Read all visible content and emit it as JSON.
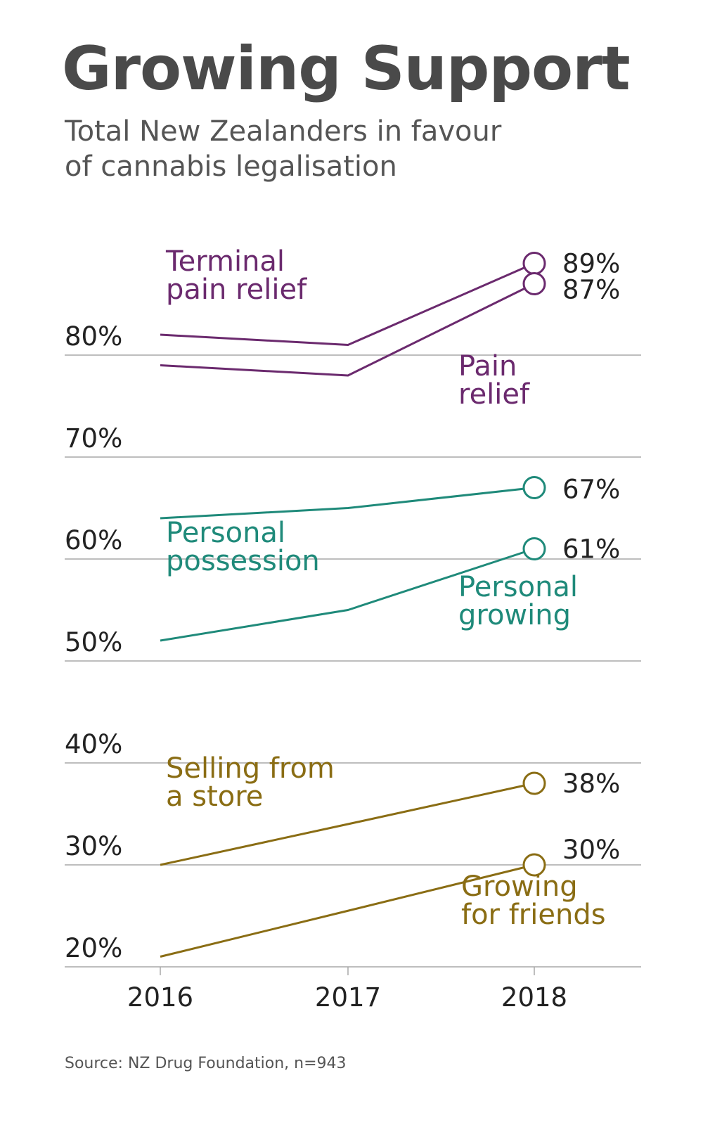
{
  "header": {
    "title": "Growing Support",
    "subtitle_line1": "Total New Zealanders in favour",
    "subtitle_line2": "of cannabis legalisation"
  },
  "footer": {
    "source": "Source: NZ Drug Foundation, n=943"
  },
  "chart_data": {
    "type": "line",
    "title": "Growing Support",
    "subtitle": "Total New Zealanders in favour of cannabis legalisation",
    "x": [
      "2016",
      "2017",
      "2018"
    ],
    "yticks": [
      "20%",
      "30%",
      "40%",
      "50%",
      "60%",
      "70%",
      "80%"
    ],
    "ytick_values": [
      20,
      30,
      40,
      50,
      60,
      70,
      80
    ],
    "ylim": [
      20,
      90
    ],
    "grid": true,
    "series": [
      {
        "name_line1": "Terminal",
        "name_line2": "pain relief",
        "values": [
          82,
          81,
          89
        ],
        "end_label": "89%",
        "color": "#6b2a6e"
      },
      {
        "name_line1": "Pain",
        "name_line2": "relief",
        "values": [
          79,
          78,
          87
        ],
        "end_label": "87%",
        "color": "#6b2a6e"
      },
      {
        "name_line1": "Personal",
        "name_line2": "possession",
        "values": [
          64,
          65,
          67
        ],
        "end_label": "67%",
        "color": "#1f8a7a"
      },
      {
        "name_line1": "Personal",
        "name_line2": "growing",
        "values": [
          52,
          55,
          61
        ],
        "end_label": "61%",
        "color": "#1f8a7a"
      },
      {
        "name_line1": "Selling from",
        "name_line2": "a store",
        "values": [
          30,
          34,
          38
        ],
        "end_label": "38%",
        "color": "#8a6d14"
      },
      {
        "name_line1": "Growing",
        "name_line2": "for friends",
        "values": [
          21,
          25.5,
          30
        ],
        "end_label": "30%",
        "color": "#8a6d14"
      }
    ]
  }
}
